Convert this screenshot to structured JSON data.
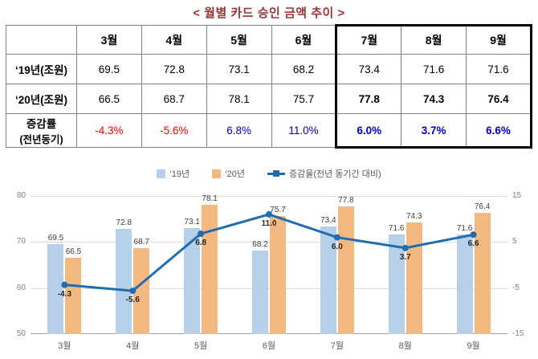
{
  "title": "< 월별 카드 승인 금액 추이 >",
  "colors": {
    "title": "#943634",
    "header_yellow": "#ffff99",
    "header_cyan": "#ccffff",
    "label_green": "#ccffcc",
    "negative": "#ff0000",
    "positive": "#0000cc",
    "bar_2019": "#b5d0e8",
    "bar_2020": "#f4b981",
    "line": "#1f6cb0"
  },
  "table": {
    "corner": "",
    "months": [
      "3월",
      "4월",
      "5월",
      "6월",
      "7월",
      "8월",
      "9월"
    ],
    "rows": [
      {
        "label": "‘19년(조원)",
        "values": [
          "69.5",
          "72.8",
          "73.1",
          "68.2",
          "73.4",
          "71.6",
          "71.6"
        ]
      },
      {
        "label": "‘20년(조원)",
        "values": [
          "66.5",
          "68.7",
          "78.1",
          "75.7",
          "77.8",
          "74.3",
          "76.4"
        ]
      },
      {
        "label": "증감률",
        "label2": "(전년동기)",
        "values": [
          "-4.3%",
          "-5.6%",
          "6.8%",
          "11.0%",
          "6.0%",
          "3.7%",
          "6.6%"
        ]
      }
    ]
  },
  "chart_data": {
    "type": "combo",
    "categories": [
      "3월",
      "4월",
      "5월",
      "6월",
      "7월",
      "8월",
      "9월"
    ],
    "series": [
      {
        "name": "‘19년",
        "type": "bar",
        "axis": "left",
        "color": "#b5d0e8",
        "values": [
          69.5,
          72.8,
          73.1,
          68.2,
          73.4,
          71.6,
          71.6
        ],
        "labels": [
          "69.5",
          "72.8",
          "73.1",
          "68.2",
          "73.4",
          "71.6",
          "71.6"
        ]
      },
      {
        "name": "‘20년",
        "type": "bar",
        "axis": "left",
        "color": "#f4b981",
        "values": [
          66.5,
          68.7,
          78.1,
          75.7,
          77.8,
          74.3,
          76.4
        ],
        "labels": [
          "66.5",
          "68.7",
          "78.1",
          "75.7",
          "77.8",
          "74.3",
          "76.4"
        ]
      },
      {
        "name": "증감율(전년 동기간 대비)",
        "type": "line",
        "axis": "right",
        "color": "#1f6cb0",
        "values": [
          -4.3,
          -5.6,
          6.8,
          11.0,
          6.0,
          3.7,
          6.6
        ],
        "labels": [
          "-4.3",
          "-5.6",
          "6.8",
          "11.0",
          "6.0",
          "3.7",
          "6.6"
        ]
      }
    ],
    "left_axis": {
      "min": 50,
      "max": 80,
      "ticks": [
        80,
        70,
        60,
        50
      ]
    },
    "right_axis": {
      "min": -15,
      "max": 15,
      "ticks": [
        15,
        5,
        -5,
        -15
      ]
    },
    "grid": true,
    "legend_position": "top"
  }
}
